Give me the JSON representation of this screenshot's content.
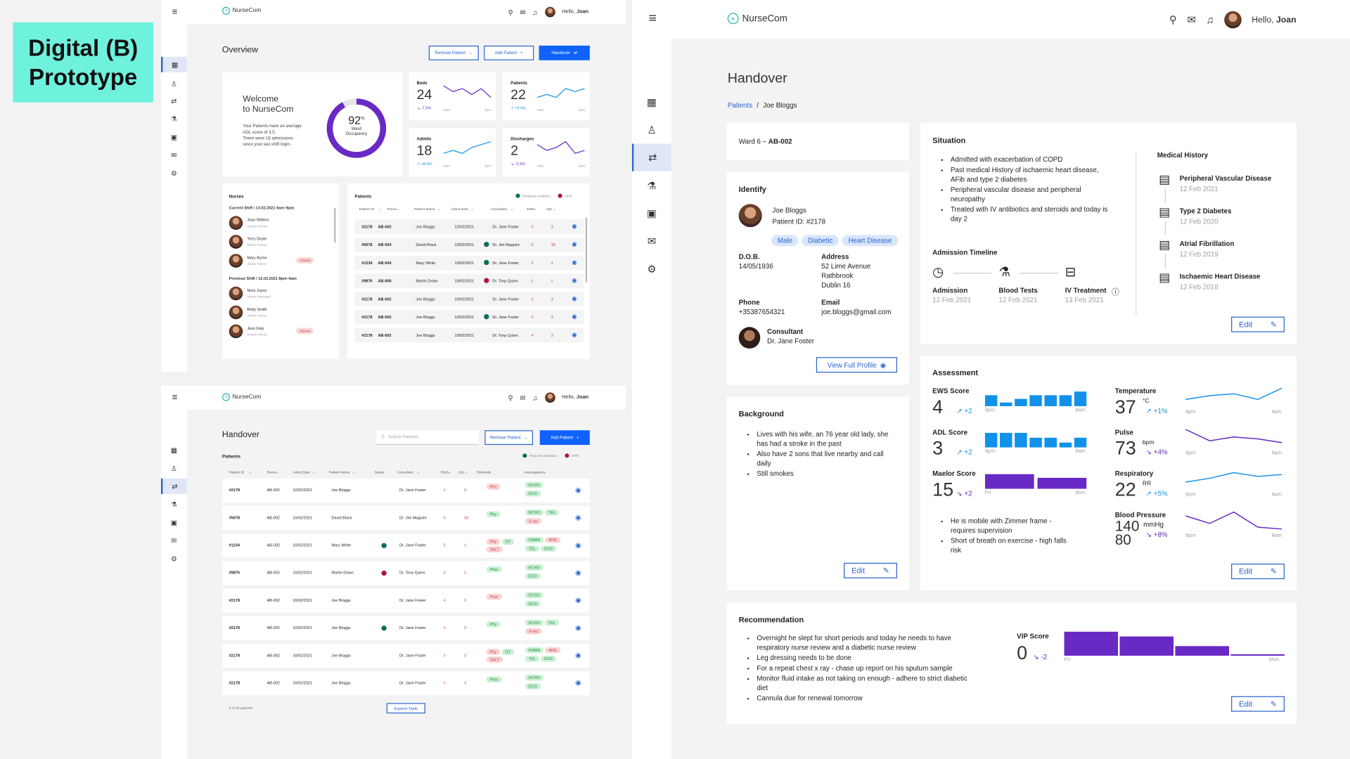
{
  "label": {
    "line1": "Digital (B)",
    "line2": "Prototype"
  },
  "colors": {
    "accent": "#0f62fe",
    "teal": "#26b5a4",
    "purple": "#6929c4",
    "chartBlue": "#1192e8",
    "labelBg": "#6ff2dd"
  },
  "app": {
    "name": "NurseCom",
    "greeting": "Hello,",
    "user": "Joan"
  },
  "overview": {
    "title": "Overview",
    "remove_btn": "Remove Patient",
    "add_btn": "Add Patient",
    "handover_btn": "Handover",
    "welcome_line1": "Welcome",
    "welcome_line2": "to NurseCom",
    "welcome_text1": "Your Patients have an average",
    "welcome_text2": "ADL score of 3.5.",
    "welcome_text3": "There were 18 admissions",
    "welcome_text4": "since your last shift login.",
    "occupancy": {
      "value": 92,
      "label1": "Ward",
      "label2": "Occupancy"
    },
    "stats": [
      {
        "title": "Beds",
        "value": "24",
        "delta": "-7.5%",
        "from": "8am",
        "to": "8pm"
      },
      {
        "title": "Patients",
        "value": "22",
        "delta": "+5.5%",
        "from": "8am",
        "to": "8pm"
      },
      {
        "title": "Admits",
        "value": "18",
        "delta": "+8.5%",
        "from": "8am",
        "to": "8pm"
      },
      {
        "title": "Discharges",
        "value": "2",
        "delta": "-2.5%",
        "from": "8am",
        "to": "8pm"
      }
    ],
    "nurses": {
      "title": "Nurses",
      "current": "Current Shift / 13.02.2021 6am–8pm",
      "previous": "Previous Shift / 12.02.2021 8pm–6am",
      "list1": [
        {
          "name": "Joan Wilkins",
          "role": "Senior Nurse",
          "absent": ""
        },
        {
          "name": "Terry Doyle",
          "role": "Senior Nurse",
          "absent": ""
        },
        {
          "name": "Mary Byrne",
          "role": "Junior Nurse",
          "absent": "Absent"
        }
      ],
      "list2": [
        {
          "name": "Nora Joyce",
          "role": "Nurse Manager",
          "absent": ""
        },
        {
          "name": "Betty Smith",
          "role": "Junior Nurse",
          "absent": ""
        },
        {
          "name": "Jess Daly",
          "role": "Senior Nurse",
          "absent": "Absent"
        }
      ]
    },
    "patients": {
      "title": "Patients",
      "legend_iso": "Requires Isolation",
      "legend_nfr": "NFR",
      "headers": [
        "Patient ID",
        "Room",
        "Patient Name",
        "Admit Date",
        "Consultant",
        "EWS",
        "ADL"
      ],
      "rows": [
        [
          "#2178",
          "AB-002",
          "Joe Bloggs",
          "12/02/2021",
          "",
          "Dr. Jane Foster",
          "4",
          "3"
        ],
        [
          "#5678",
          "AB-004",
          "David Black",
          "10/02/2021",
          "iso",
          "Dr. Jim Maguire",
          "0",
          "10"
        ],
        [
          "#1234",
          "AB-004",
          "Mary White",
          "10/02/2021",
          "iso",
          "Dr. Jane Foster",
          "2",
          "4"
        ],
        [
          "#9876",
          "AB-008",
          "Martin Dolan",
          "10/02/2021",
          "nfr",
          "Dr. Tony Quinn",
          "6",
          "5"
        ],
        [
          "#2178",
          "AB-002",
          "Joe Bloggs",
          "10/02/2021",
          "",
          "Dr. Jane Foster",
          "4",
          "3"
        ],
        [
          "#2178",
          "AB-002",
          "Joe Bloggs",
          "10/02/2021",
          "iso",
          "Dr. Jane Foster",
          "4",
          "3"
        ],
        [
          "#2178",
          "AB-002",
          "Joe Bloggs",
          "10/02/2021",
          "",
          "Dr. Tony Quinn",
          "4",
          "3"
        ]
      ]
    }
  },
  "handover_list": {
    "title": "Handover",
    "search_placeholder": "Search Patients",
    "remove_btn": "Remove Patient",
    "add_btn": "Add Patient",
    "patients_label": "Patients",
    "legend_iso": "Requires Isolation",
    "legend_nfr": "NFR",
    "headers": [
      "Patient ID",
      "Room",
      "Admit Date",
      "Patient Name",
      "Status",
      "Consultant",
      "EWS",
      "ADL",
      "Referrals",
      "Investigations"
    ],
    "rows": [
      {
        "id": "#2178",
        "room": "AB-002",
        "date": "12/02/2021",
        "name": "Joe Bloggs",
        "status": "",
        "cons": "Dr. Jane Foster",
        "ews": "4",
        "adl": "3",
        "refs": [
          [
            "Phe",
            "r"
          ]
        ],
        "inv": [
          [
            "ECHO",
            "g"
          ],
          [
            "ECG",
            "g"
          ]
        ]
      },
      {
        "id": "#5678",
        "room": "AB-002",
        "date": "10/02/2021",
        "name": "David Black",
        "status": "",
        "cons": "Dr. Jim Maguire",
        "ews": "0",
        "adl": "10",
        "refs": [
          [
            "Phy",
            "g"
          ]
        ],
        "inv": [
          [
            "ECHO",
            "g"
          ],
          [
            "TEL",
            "g"
          ],
          [
            "X-ray",
            "r"
          ]
        ]
      },
      {
        "id": "#1234",
        "room": "AB-002",
        "date": "10/02/2021",
        "name": "Mary White",
        "status": "iso",
        "cons": "Dr. Jane Foster",
        "ews": "2",
        "adl": "4",
        "refs": [
          [
            "Phy",
            "r"
          ],
          [
            "OT",
            "g"
          ],
          [
            "SALT",
            "r"
          ]
        ],
        "inv": [
          [
            "FMMA",
            "g"
          ],
          [
            "ANG",
            "r"
          ],
          [
            "TEL",
            "g"
          ],
          [
            "ECG",
            "g"
          ]
        ]
      },
      {
        "id": "#9876",
        "room": "AB-002",
        "date": "10/02/2021",
        "name": "Martin Dolan",
        "status": "nfr",
        "cons": "Dr. Tony Quinn",
        "ews": "6",
        "adl": "5",
        "refs": [
          [
            "Phar",
            "g"
          ]
        ],
        "inv": [
          [
            "ECHO",
            "g"
          ],
          [
            "ECG",
            "g"
          ]
        ]
      },
      {
        "id": "#2178",
        "room": "AB-002",
        "date": "10/02/2021",
        "name": "Joe Bloggs",
        "status": "",
        "cons": "Dr. Jane Foster",
        "ews": "4",
        "adl": "3",
        "refs": [
          [
            "Phar",
            "r"
          ]
        ],
        "inv": [
          [
            "ECHO",
            "g"
          ],
          [
            "ECG",
            "g"
          ]
        ]
      },
      {
        "id": "#2178",
        "room": "AB-002",
        "date": "10/02/2021",
        "name": "Joe Bloggs",
        "status": "iso",
        "cons": "Dr. Jane Foster",
        "ews": "4",
        "adl": "3",
        "refs": [
          [
            "Phy",
            "g"
          ]
        ],
        "inv": [
          [
            "ECHO",
            "g"
          ],
          [
            "TEL",
            "g"
          ],
          [
            "X-ray",
            "r"
          ]
        ]
      },
      {
        "id": "#2178",
        "room": "AB-002",
        "date": "10/02/2021",
        "name": "Joe Bloggs",
        "status": "",
        "cons": "Dr. Jane Foster",
        "ews": "4",
        "adl": "3",
        "refs": [
          [
            "Phy",
            "r"
          ],
          [
            "OT",
            "g"
          ],
          [
            "SALT",
            "r"
          ]
        ],
        "inv": [
          [
            "FMMA",
            "g"
          ],
          [
            "ANG",
            "r"
          ],
          [
            "TEL",
            "g"
          ],
          [
            "ECG",
            "g"
          ]
        ]
      },
      {
        "id": "#2178",
        "room": "AB-002",
        "date": "10/02/2021",
        "name": "Joe Bloggs",
        "status": "",
        "cons": "Dr. Jane Foster",
        "ews": "4",
        "adl": "3",
        "refs": [
          [
            "Phar",
            "g"
          ]
        ],
        "inv": [
          [
            "ECHO",
            "g"
          ],
          [
            "ECG",
            "g"
          ]
        ]
      }
    ],
    "footer_count": "8 of 22 patients",
    "expand_btn": "Expand Table"
  },
  "detail": {
    "title": "Handover",
    "crumb_root": "Patients",
    "crumb_sep": "/",
    "crumb_current": "Joe Bloggs",
    "ward_prefix": "Ward 6 –",
    "ward_room": "AB-002",
    "identify": {
      "title": "Identify",
      "name": "Joe Bloggs",
      "pid": "Patient ID: #2178",
      "tags": [
        "Male",
        "Diabetic",
        "Heart Disease"
      ],
      "dob_label": "D.O.B.",
      "dob": "14/05/1936",
      "address_label": "Address",
      "address": [
        "52 Lime Avenue",
        "Rathbrook",
        "Dublin 16"
      ],
      "phone_label": "Phone",
      "phone": "+35387654321",
      "email_label": "Email",
      "email": "joe.bloggs@gmail.com",
      "consultant_label": "Consultant",
      "consultant": "Dr. Jane Foster",
      "profile_btn": "View Full Profile"
    },
    "background": {
      "title": "Background",
      "items": [
        "Lives with his wife, an 76 year old lady, she has had a stroke in the past",
        "Also have 2 sons that live nearby and call daily",
        "Still smokes"
      ],
      "edit": "Edit"
    },
    "situation": {
      "title": "Situation",
      "items": [
        "Admitted with exacerbation of COPD",
        "Past medical History of ischaemic heart disease, AFib and type 2 diabetes",
        "Peripheral vascular disease and peripheral neuropathy",
        "Treated with IV antibiotics and steroids and today is day 2"
      ],
      "timeline_title": "Admission Timeline",
      "timeline": [
        {
          "label": "Admission",
          "date": "12 Feb 2021"
        },
        {
          "label": "Blood Tests",
          "date": "12 Feb 2021"
        },
        {
          "label": "IV Treatment",
          "date": "13 Feb 2021"
        }
      ],
      "history_title": "Medical History",
      "history": [
        {
          "label": "Peripheral Vascular Disease",
          "date": "12 Feb 2021"
        },
        {
          "label": "Type 2 Diabetes",
          "date": "12 Feb 2020"
        },
        {
          "label": "Atrial Fibrillation",
          "date": "12 Feb 2019"
        },
        {
          "label": "Ischaemic Heart Disease",
          "date": "12 Feb 2018"
        }
      ],
      "edit": "Edit"
    },
    "assessment": {
      "title": "Assessment",
      "scores": [
        {
          "name": "EWS Score",
          "value": "4",
          "delta": "+2",
          "dir": "up",
          "from": "8pm",
          "to": "8am",
          "bars": [
            3,
            1,
            2,
            3,
            3,
            3,
            4
          ],
          "color": "#1192e8"
        },
        {
          "name": "ADL Score",
          "value": "3",
          "delta": "+2",
          "dir": "up",
          "from": "8pm",
          "to": "8am",
          "bars": [
            3,
            3,
            3,
            2,
            2,
            1,
            2
          ],
          "color": "#1192e8"
        },
        {
          "name": "Maelor Score",
          "value": "15",
          "delta": "+2",
          "dir": "down",
          "from": "Fri",
          "to": "Mon",
          "bars": [
            4,
            3
          ],
          "color": "#6929c4"
        }
      ],
      "vitals": [
        {
          "name": "Temperature",
          "value": "37",
          "unit": "°C",
          "delta": "+1%",
          "dir": "up",
          "from": "8pm",
          "to": "8am",
          "color": "#1192e8",
          "pts": [
            2,
            3,
            3.5,
            2,
            5
          ]
        },
        {
          "name": "Pulse",
          "value": "73",
          "unit": "bpm",
          "delta": "+4%",
          "dir": "down",
          "from": "8pm",
          "to": "8am",
          "color": "#6929c4",
          "pts": [
            5,
            2,
            3,
            2.5,
            1.5
          ]
        },
        {
          "name": "Respiratory",
          "value": "22",
          "unit": "RR",
          "delta": "+5%",
          "dir": "up",
          "from": "8pm",
          "to": "8am",
          "color": "#1192e8",
          "pts": [
            2,
            3,
            4.5,
            3.5,
            4
          ]
        },
        {
          "name": "Blood Pressure",
          "value1": "140",
          "value2": "80",
          "unit": "mmHg",
          "delta": "+8%",
          "dir": "down",
          "from": "8pm",
          "to": "8am",
          "color": "#6929c4",
          "pts": [
            4,
            2,
            5,
            1,
            0.5
          ]
        }
      ],
      "notes": [
        "He is mobile with Zimmer frame - requires supervision",
        "Short of breath on exercise - high falls risk"
      ],
      "edit": "Edit"
    },
    "recommendation": {
      "title": "Recommendation",
      "items": [
        "Overnight he slept for short periods and today he needs to have respiratory nurse review and a diabetic nurse review",
        "Leg dressing needs to be done",
        "For a repeat chest x ray - chase up report on his sputum sample",
        "Monitor fluid intake as not taking on enough - adhere to strict diabetic diet",
        "Cannula due for renewal tomorrow"
      ],
      "vip_name": "VIP Score",
      "vip_value": "0",
      "vip_delta": "-2",
      "vip_from": "Fri",
      "vip_to": "Mon",
      "vip_bars": [
        5,
        4,
        2,
        0.3
      ],
      "edit": "Edit"
    }
  }
}
